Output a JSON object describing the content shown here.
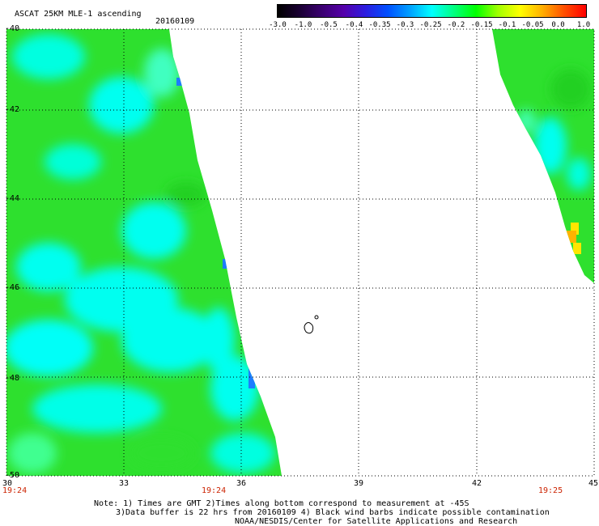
{
  "header": {
    "title": "ASCAT 25KM MLE-1 ascending",
    "date": "20160109"
  },
  "colorbar": {
    "labels": [
      "-3.0",
      "-1.0",
      "-0.5",
      "-0.4",
      "-0.35",
      "-0.3",
      "-0.25",
      "-0.2",
      "-0.15",
      "-0.1",
      "-0.05",
      "0.0",
      "1.0"
    ],
    "colors": [
      "#000000",
      "#1a0033",
      "#3a0070",
      "#5500aa",
      "#2c1de0",
      "#0050ff",
      "#00a0ff",
      "#00ffff",
      "#00ff80",
      "#00ff00",
      "#a0ff00",
      "#ffff00",
      "#ffb000",
      "#ff5000",
      "#ff0000"
    ]
  },
  "map": {
    "lat_labels": [
      "-40",
      "-42",
      "-44",
      "-46",
      "-48",
      "-50"
    ],
    "lon_labels": [
      "30",
      "33",
      "36",
      "39",
      "42",
      "45"
    ],
    "pass_times": [
      "19:24",
      "19:24",
      "19:25"
    ],
    "fill_colors": {
      "green": "#2ee02e",
      "cyan": "#00fff0",
      "blue": "#1e7cff",
      "yellow": "#ffe600",
      "orange": "#ffb300"
    }
  },
  "notes": {
    "line1": "Note: 1) Times are GMT 2)Times along bottom correspond to measurement at -45S",
    "line2": "3)Data buffer is 22 hrs from 20160109 4) Black wind barbs indicate possible contamination",
    "line3": "NOAA/NESDIS/Center for Satellite Applications and Research"
  }
}
